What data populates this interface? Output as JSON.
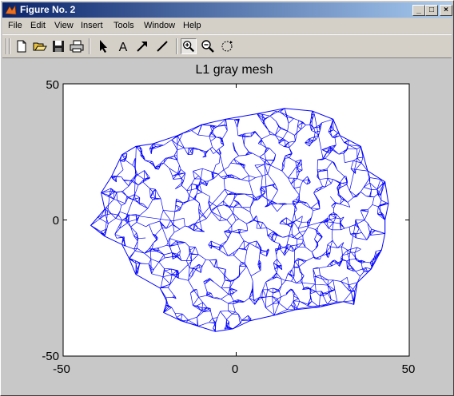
{
  "window": {
    "title": "Figure No. 2"
  },
  "title_buttons": {
    "minimize": "_",
    "maximize": "□",
    "close": "×"
  },
  "menu": [
    "File",
    "Edit",
    "View",
    "Insert",
    "Tools",
    "Window",
    "Help"
  ],
  "toolbar": {
    "tools": [
      "new-file",
      "open-folder",
      "save",
      "print",
      "select-arrow",
      "insert-text",
      "insert-arrow",
      "insert-line",
      "zoom-in",
      "zoom-out",
      "rotate"
    ],
    "text_tool_glyph": "A"
  },
  "chart_data": {
    "type": "mesh",
    "title": "L1 gray mesh",
    "xlim": [
      -50,
      50
    ],
    "ylim": [
      -50,
      50
    ],
    "xticks": [
      "-50",
      "0",
      "50"
    ],
    "yticks": [
      "50",
      "0",
      "-50"
    ],
    "grid": false,
    "line_color": "#0000ff",
    "outline": [
      [
        -38,
        4
      ],
      [
        -40,
        1
      ],
      [
        -42,
        -2
      ],
      [
        -38,
        -6
      ],
      [
        -33,
        -9
      ],
      [
        -31,
        -14
      ],
      [
        -29,
        -20
      ],
      [
        -22,
        -25
      ],
      [
        -20,
        -30
      ],
      [
        -21,
        -34
      ],
      [
        -16,
        -37
      ],
      [
        -11,
        -39
      ],
      [
        -6,
        -41
      ],
      [
        -1,
        -40
      ],
      [
        4,
        -37
      ],
      [
        11,
        -35
      ],
      [
        17,
        -33
      ],
      [
        24,
        -32
      ],
      [
        31,
        -30
      ],
      [
        34,
        -31
      ],
      [
        35,
        -23
      ],
      [
        39,
        -18
      ],
      [
        42,
        -11
      ],
      [
        43,
        -5
      ],
      [
        43,
        0
      ],
      [
        44,
        6
      ],
      [
        43,
        14
      ],
      [
        38,
        18
      ],
      [
        36,
        27
      ],
      [
        30,
        31
      ],
      [
        28,
        37
      ],
      [
        22,
        40
      ],
      [
        14,
        41
      ],
      [
        6,
        39
      ],
      [
        -3,
        37
      ],
      [
        -10,
        35
      ],
      [
        -17,
        31
      ],
      [
        -24,
        28
      ],
      [
        -29,
        27
      ],
      [
        -33,
        24
      ],
      [
        -36,
        16
      ],
      [
        -39,
        10
      ]
    ]
  }
}
